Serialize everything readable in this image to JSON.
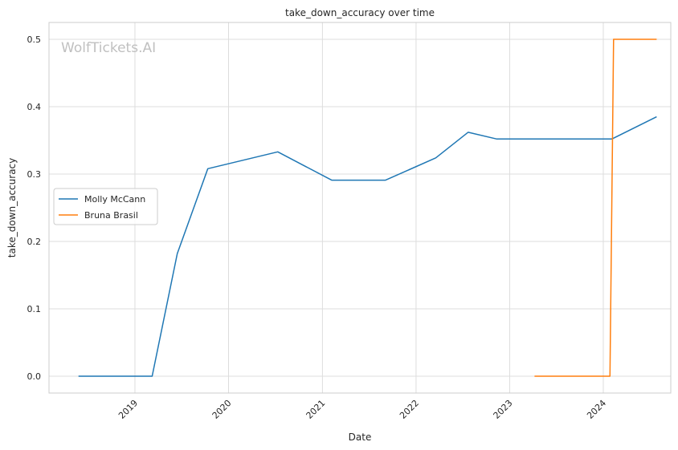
{
  "chart_data": {
    "type": "line",
    "title": "take_down_accuracy over time",
    "xlabel": "Date",
    "ylabel": "take_down_accuracy",
    "watermark": "WolfTickets.AI",
    "grid": true,
    "legend_placement": "center-left",
    "xlim": [
      "2018-01-31",
      "2024-09-20"
    ],
    "ylim": [
      -0.025,
      0.525
    ],
    "x_ticks": [
      "2019",
      "2020",
      "2021",
      "2022",
      "2023",
      "2024"
    ],
    "y_ticks": [
      "0.0",
      "0.1",
      "0.2",
      "0.3",
      "0.4",
      "0.5"
    ],
    "series": [
      {
        "name": "Molly McCann",
        "color": "#1f77b4",
        "points": [
          {
            "x": "2018-05-26",
            "y": 0.0
          },
          {
            "x": "2019-03-09",
            "y": 0.0
          },
          {
            "x": "2019-06-15",
            "y": 0.182
          },
          {
            "x": "2019-10-12",
            "y": 0.308
          },
          {
            "x": "2020-07-11",
            "y": 0.333
          },
          {
            "x": "2021-02-06",
            "y": 0.291
          },
          {
            "x": "2021-09-04",
            "y": 0.291
          },
          {
            "x": "2022-03-19",
            "y": 0.324
          },
          {
            "x": "2022-07-23",
            "y": 0.362
          },
          {
            "x": "2022-11-12",
            "y": 0.352
          },
          {
            "x": "2024-02-03",
            "y": 0.352
          },
          {
            "x": "2024-07-27",
            "y": 0.385
          }
        ]
      },
      {
        "name": "Bruna Brasil",
        "color": "#ff7f0e",
        "points": [
          {
            "x": "2023-04-08",
            "y": 0.0
          },
          {
            "x": "2024-01-27",
            "y": 0.0
          },
          {
            "x": "2024-02-10",
            "y": 0.5
          },
          {
            "x": "2024-07-27",
            "y": 0.5
          }
        ]
      }
    ]
  }
}
